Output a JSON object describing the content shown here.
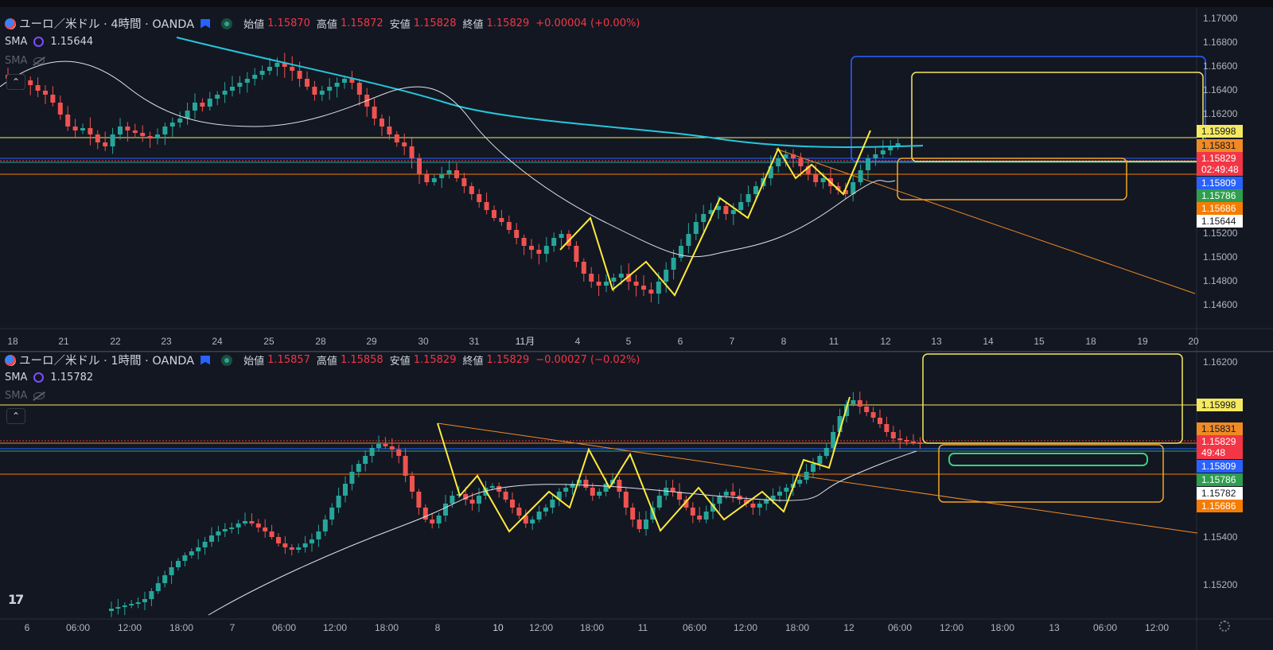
{
  "pane1": {
    "title": "ユーロ／米ドル · 4時間 · OANDA",
    "ohlc": {
      "open_label": "始値",
      "open": "1.15870",
      "high_label": "高値",
      "high": "1.15872",
      "low_label": "安値",
      "low": "1.15828",
      "close_label": "終値",
      "close": "1.15829",
      "change": "+0.00004 (+0.00%)"
    },
    "sma_label": "SMA",
    "sma_value": "1.15644",
    "sma2_label": "SMA",
    "price_axis": [
      "1.17000",
      "1.16800",
      "1.16600",
      "1.16400",
      "1.16200",
      "1.15200",
      "1.15000",
      "1.14800",
      "1.14600"
    ],
    "price_tags": [
      {
        "text": "1.15998",
        "color": "#f5e960",
        "fg": "#131722"
      },
      {
        "text": "1.15831",
        "color": "#f08a24",
        "fg": "#131722"
      },
      {
        "text": "1.15829",
        "color": "#f23645",
        "fg": "#ffffff"
      },
      {
        "text": "02:49:48",
        "color": "#f23645",
        "fg": "#ffffff"
      },
      {
        "text": "1.15809",
        "color": "#2962ff",
        "fg": "#ffffff"
      },
      {
        "text": "1.15786",
        "color": "#2e9e4f",
        "fg": "#ffffff"
      },
      {
        "text": "1.15686",
        "color": "#f57c00",
        "fg": "#ffffff"
      },
      {
        "text": "1.15644",
        "color": "#ffffff",
        "fg": "#131722"
      }
    ],
    "time_axis": [
      "18",
      "21",
      "22",
      "23",
      "24",
      "25",
      "28",
      "29",
      "30",
      "31",
      "11月",
      "4",
      "5",
      "6",
      "7",
      "8",
      "11",
      "12",
      "13",
      "14",
      "15",
      "18",
      "19",
      "20"
    ]
  },
  "pane2": {
    "title": "ユーロ／米ドル · 1時間 · OANDA",
    "ohlc": {
      "open_label": "始値",
      "open": "1.15857",
      "high_label": "高値",
      "high": "1.15858",
      "low_label": "安値",
      "low": "1.15829",
      "close_label": "終値",
      "close": "1.15829",
      "change": "−0.00027 (−0.02%)"
    },
    "sma_label": "SMA",
    "sma_value": "1.15782",
    "sma2_label": "SMA",
    "price_axis": [
      "1.16200",
      "1.15400",
      "1.15200"
    ],
    "price_tags": [
      {
        "text": "1.15998",
        "color": "#f5e960",
        "fg": "#131722"
      },
      {
        "text": "1.15831",
        "color": "#f08a24",
        "fg": "#131722"
      },
      {
        "text": "1.15829",
        "color": "#f23645",
        "fg": "#ffffff"
      },
      {
        "text": "49:48",
        "color": "#f23645",
        "fg": "#ffffff"
      },
      {
        "text": "1.15809",
        "color": "#2962ff",
        "fg": "#ffffff"
      },
      {
        "text": "1.15786",
        "color": "#2e9e4f",
        "fg": "#ffffff"
      },
      {
        "text": "1.15782",
        "color": "#ffffff",
        "fg": "#131722"
      },
      {
        "text": "1.15686",
        "color": "#f57c00",
        "fg": "#ffffff"
      }
    ],
    "time_axis": [
      "6",
      "06:00",
      "12:00",
      "18:00",
      "7",
      "06:00",
      "12:00",
      "18:00",
      "8",
      "10",
      "12:00",
      "18:00",
      "11",
      "06:00",
      "12:00",
      "18:00",
      "12",
      "06:00",
      "12:00",
      "18:00",
      "13",
      "06:00",
      "12:00"
    ]
  },
  "colors": {
    "up": "#26a69a",
    "down": "#ef5350",
    "sma_fast": "#e0e3eb",
    "sma_slow": "#26c6da",
    "zigzag": "#ffeb3b",
    "trend": "#f08a24",
    "zone_blue": "#2962ff",
    "zone_yellow": "#f5e960",
    "zone_orange": "#f5a623",
    "zone_green": "#3ad07a"
  }
}
